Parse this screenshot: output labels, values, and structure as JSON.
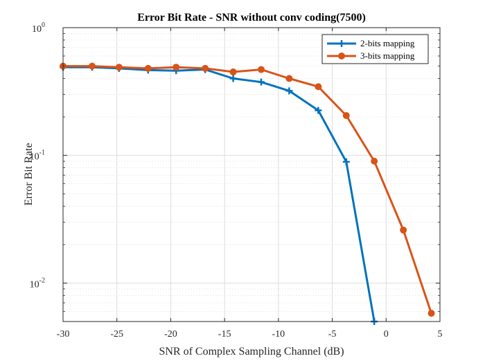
{
  "chart_data": {
    "type": "line",
    "title": "Error Bit Rate - SNR without conv coding(7500)",
    "xlabel": "SNR of Complex Sampling Channel (dB)",
    "ylabel": "Error Bit Rate",
    "xlim": [
      -30,
      5
    ],
    "ylim": [
      0.005,
      1
    ],
    "yscale": "log",
    "xticks": [
      -30,
      -25,
      -20,
      -15,
      -10,
      -5,
      0,
      5
    ],
    "xtick_labels": [
      "-30",
      "-25",
      "-20",
      "-15",
      "-10",
      "-5",
      "0",
      "5"
    ],
    "yticks": [
      {
        "base": "10",
        "exp": "-2",
        "value": 0.01
      },
      {
        "base": "10",
        "exp": "-1",
        "value": 0.1
      },
      {
        "base": "10",
        "exp": "0",
        "value": 1
      }
    ],
    "grid": true,
    "legend_position": "top-right",
    "series": [
      {
        "name": "2-bits mapping",
        "color": "#0072BD",
        "marker": "plus",
        "x": [
          -30,
          -27.3,
          -24.8,
          -22.1,
          -19.5,
          -16.8,
          -14.2,
          -11.6,
          -9,
          -6.3,
          -3.7,
          -1.1
        ],
        "y": [
          0.49,
          0.49,
          0.48,
          0.465,
          0.46,
          0.47,
          0.4,
          0.375,
          0.32,
          0.225,
          0.089,
          0.005
        ]
      },
      {
        "name": "3-bits mapping",
        "color": "#D95319",
        "marker": "circle",
        "x": [
          -30,
          -27.3,
          -24.8,
          -22.1,
          -19.5,
          -16.8,
          -14.2,
          -11.6,
          -9,
          -6.3,
          -3.7,
          -1.1,
          1.6,
          4.2
        ],
        "y": [
          0.5,
          0.5,
          0.49,
          0.48,
          0.49,
          0.48,
          0.45,
          0.47,
          0.4,
          0.345,
          0.205,
          0.09,
          0.026,
          0.0058
        ]
      }
    ]
  }
}
